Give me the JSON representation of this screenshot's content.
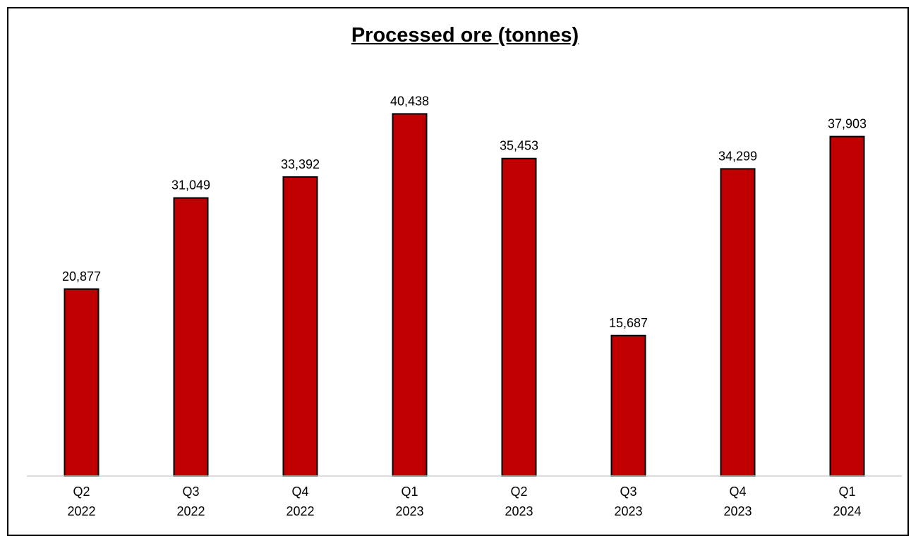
{
  "chart_data": {
    "type": "bar",
    "title": "Processed ore (tonnes)",
    "categories": [
      [
        "Q2",
        "2022"
      ],
      [
        "Q3",
        "2022"
      ],
      [
        "Q4",
        "2022"
      ],
      [
        "Q1",
        "2023"
      ],
      [
        "Q2",
        "2023"
      ],
      [
        "Q3",
        "2023"
      ],
      [
        "Q4",
        "2023"
      ],
      [
        "Q1",
        "2024"
      ]
    ],
    "values": [
      20877,
      31049,
      33392,
      40438,
      35453,
      15687,
      34299,
      37903
    ],
    "value_labels": [
      "20,877",
      "31,049",
      "33,392",
      "40,438",
      "35,453",
      "15,687",
      "34,299",
      "37,903"
    ],
    "ylim": [
      0,
      45000
    ],
    "grid": false,
    "legend": "none",
    "bar_color": "#c00000",
    "bar_outline": "#000000"
  }
}
